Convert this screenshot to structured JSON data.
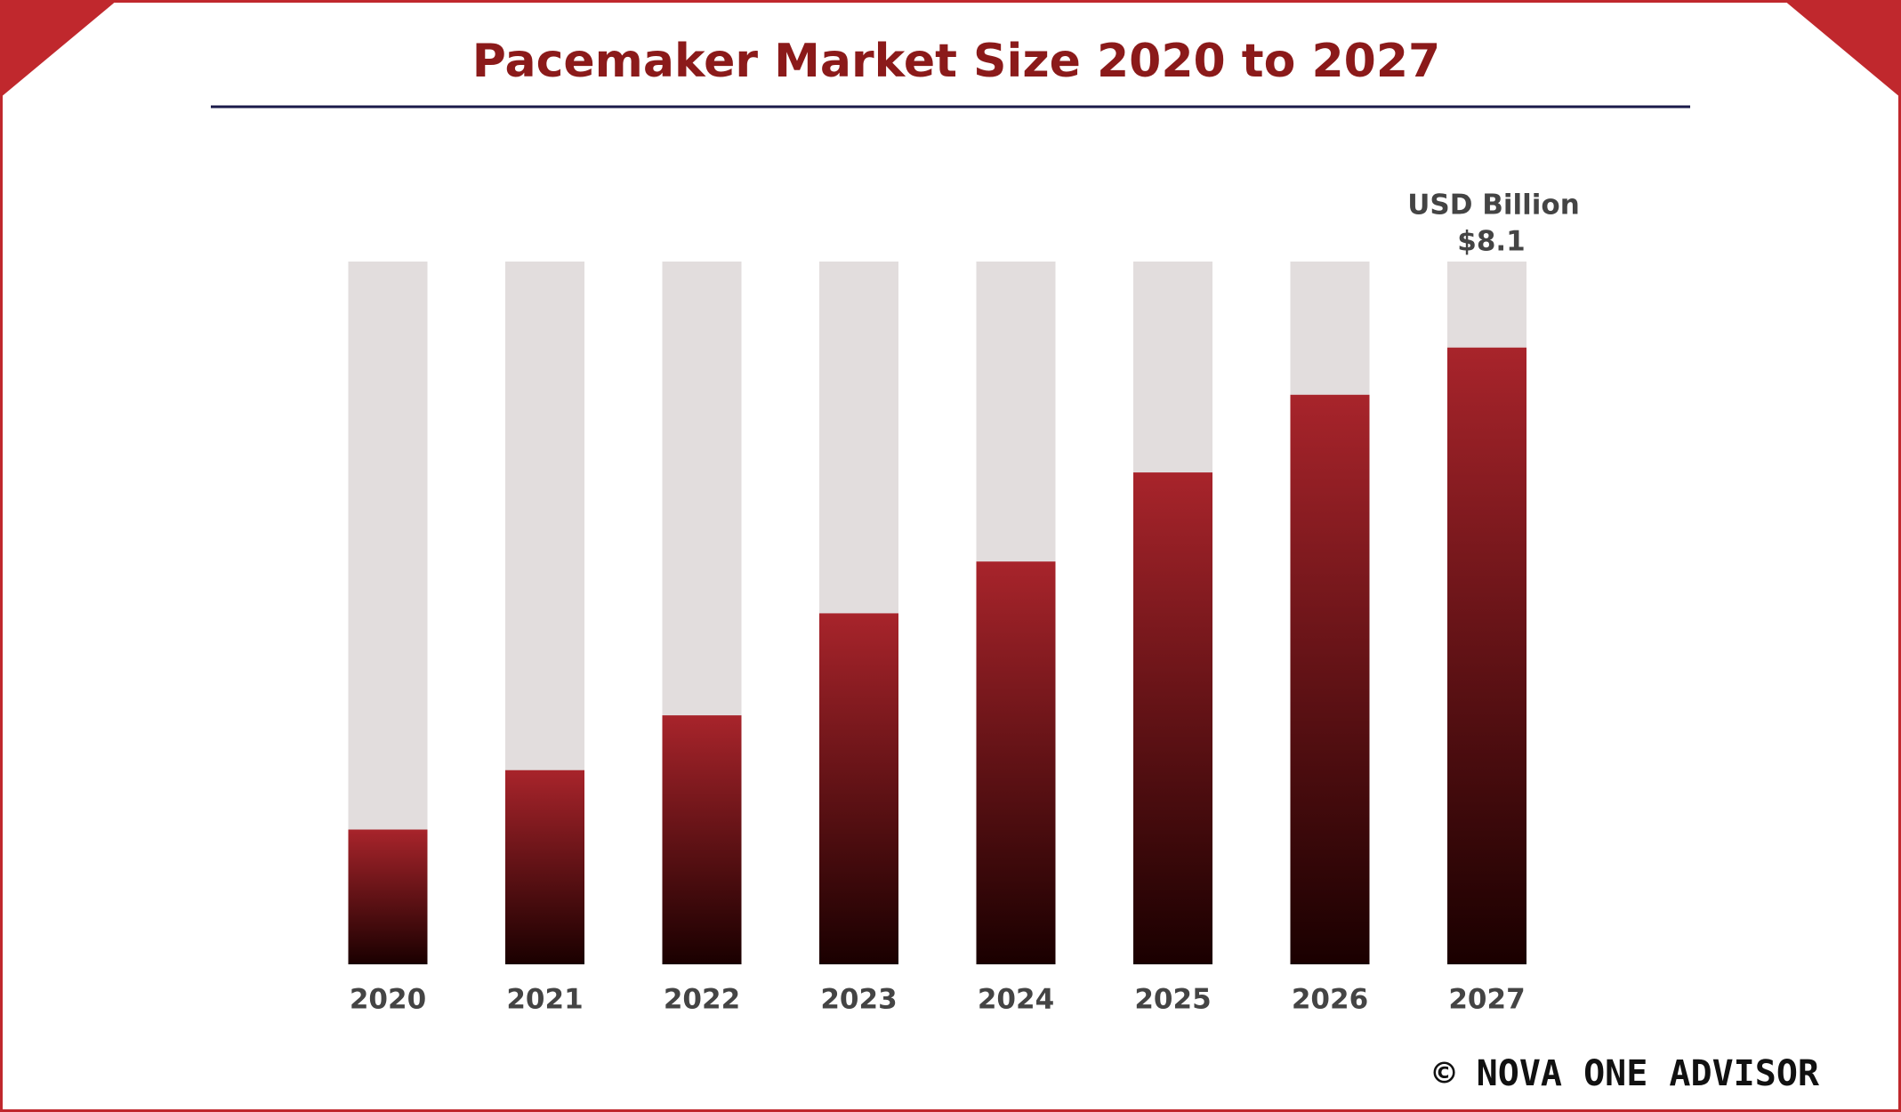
{
  "chart_data": {
    "type": "bar",
    "title": "Pacemaker Market Size 2020 to 2027",
    "unit_label": "USD Billion",
    "categories": [
      "2020",
      "2021",
      "2022",
      "2023",
      "2024",
      "2025",
      "2026",
      "2027"
    ],
    "values": [
      1.77,
      2.55,
      3.27,
      4.61,
      5.29,
      6.46,
      7.48,
      8.1
    ],
    "value_labels": [
      null,
      null,
      null,
      null,
      null,
      null,
      null,
      "$8.1"
    ],
    "color": "#a8242b",
    "ylim": [
      0,
      9.23
    ]
  },
  "footer": "© NOVA ONE ADVISOR"
}
